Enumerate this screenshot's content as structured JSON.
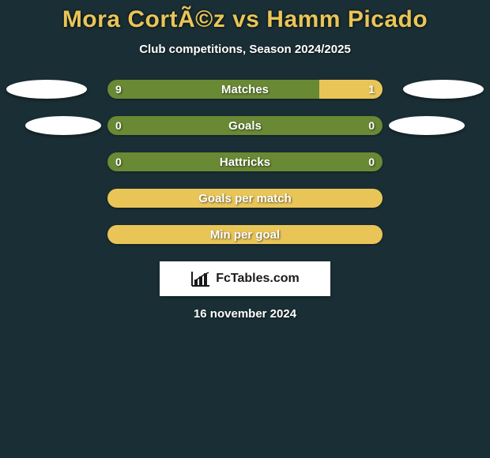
{
  "title": "Mora CortÃ©z vs Hamm Picado",
  "subtitle": "Club competitions, Season 2024/2025",
  "colors": {
    "background": "#1a2f35",
    "title": "#e9c558",
    "text": "#ffffff",
    "green": "#698934",
    "yellow": "#e9c558",
    "ellipse": "#ffffff"
  },
  "bars": [
    {
      "label": "Matches",
      "left_value": "9",
      "right_value": "1",
      "left_color": "#698934",
      "right_color": "#e9c558",
      "left_pct": 77,
      "right_pct": 23,
      "show_left_ellipse": true,
      "show_right_ellipse": true,
      "ellipse_inset": false
    },
    {
      "label": "Goals",
      "left_value": "0",
      "right_value": "0",
      "left_color": "#698934",
      "right_color": "#698934",
      "left_pct": 50,
      "right_pct": 50,
      "show_left_ellipse": true,
      "show_right_ellipse": true,
      "ellipse_inset": true
    },
    {
      "label": "Hattricks",
      "left_value": "0",
      "right_value": "0",
      "left_color": "#698934",
      "right_color": "#698934",
      "left_pct": 50,
      "right_pct": 50,
      "show_left_ellipse": false,
      "show_right_ellipse": false,
      "ellipse_inset": false
    },
    {
      "label": "Goals per match",
      "left_value": "",
      "right_value": "",
      "left_color": "#e9c558",
      "right_color": "#e9c558",
      "left_pct": 50,
      "right_pct": 50,
      "show_left_ellipse": false,
      "show_right_ellipse": false,
      "ellipse_inset": false
    },
    {
      "label": "Min per goal",
      "left_value": "",
      "right_value": "",
      "left_color": "#e9c558",
      "right_color": "#e9c558",
      "left_pct": 50,
      "right_pct": 50,
      "show_left_ellipse": false,
      "show_right_ellipse": false,
      "ellipse_inset": false
    }
  ],
  "logo_text": "FcTables.com",
  "date": "16 november 2024"
}
